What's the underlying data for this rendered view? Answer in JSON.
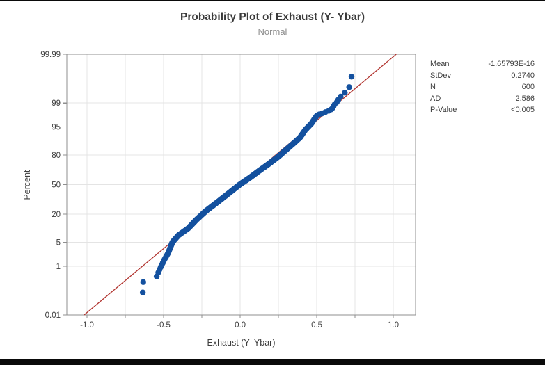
{
  "chart_data": {
    "type": "scatter",
    "subtype": "normal-probability-plot",
    "title": "Probability Plot of Exhaust (Y- Ybar)",
    "subtitle": "Normal",
    "xlabel": "Exhaust (Y- Ybar)",
    "ylabel": "Percent",
    "x_axis": {
      "lim": [
        -1.132,
        1.145
      ],
      "tick_values": [
        -1.0,
        -0.5,
        0.0,
        0.5,
        1.0
      ],
      "tick_labels": [
        "-1.0",
        "-0.5",
        "0.0",
        "0.5",
        "1.0"
      ],
      "minor_tick_values": [
        -1.0,
        -0.75,
        -0.5,
        -0.25,
        0.0,
        0.25,
        0.5,
        0.75,
        1.0
      ]
    },
    "y_axis": {
      "scale": "normal-probability-percent",
      "percent_lim": [
        0.01,
        99.99
      ],
      "tick_values": [
        99.99,
        99,
        95,
        80,
        50,
        20,
        5,
        1,
        0.01
      ],
      "tick_labels": [
        "99.99",
        "99",
        "95",
        "80",
        "50",
        "20",
        "5",
        "1",
        "0.01"
      ],
      "gridline_values": [
        99,
        95,
        80,
        50,
        20,
        5,
        1
      ]
    },
    "grid": true,
    "n_points": 600,
    "plotting_position": "(i-0.375)/(n+0.25)",
    "fit": {
      "mean": 0,
      "stdev": 0.274
    },
    "curve_anchors_z_x": [
      [
        -3.09,
        -0.636
      ],
      [
        -2.77,
        -0.633
      ],
      [
        -2.64,
        -0.547
      ],
      [
        -2.4,
        -0.524
      ],
      [
        -2.15,
        -0.496
      ],
      [
        -1.95,
        -0.47
      ],
      [
        -1.64,
        -0.442
      ],
      [
        -1.45,
        -0.404
      ],
      [
        -1.25,
        -0.34
      ],
      [
        -1.0,
        -0.285
      ],
      [
        -0.75,
        -0.223
      ],
      [
        -0.5,
        -0.148
      ],
      [
        -0.25,
        -0.075
      ],
      [
        0.0,
        -0.003
      ],
      [
        0.2,
        0.064
      ],
      [
        0.4,
        0.126
      ],
      [
        0.6,
        0.19
      ],
      [
        0.8,
        0.25
      ],
      [
        1.05,
        0.315
      ],
      [
        1.2,
        0.355
      ],
      [
        1.35,
        0.392
      ],
      [
        1.56,
        0.425
      ],
      [
        1.74,
        0.465
      ],
      [
        1.88,
        0.486
      ],
      [
        1.98,
        0.503
      ],
      [
        2.12,
        0.588
      ],
      [
        2.18,
        0.603
      ],
      [
        2.28,
        0.615
      ],
      [
        2.37,
        0.635
      ],
      [
        2.47,
        0.646
      ],
      [
        2.73,
        0.709
      ],
      [
        3.08,
        0.727
      ]
    ],
    "colors": {
      "point": "#14519f",
      "fit_line": "#b23530",
      "grid": "#e4e4e4",
      "frame": "#8f8f8f",
      "tick": "#8f8f8f",
      "text": "#3d3d3d",
      "subtitle": "#8d8d8d"
    },
    "legend_position": "right"
  },
  "stats": {
    "rows": [
      {
        "label": "Mean",
        "value": "-1.65793E-16"
      },
      {
        "label": "StDev",
        "value": "0.2740"
      },
      {
        "label": "N",
        "value": "600"
      },
      {
        "label": "AD",
        "value": "2.586"
      },
      {
        "label": "P-Value",
        "value": "<0.005"
      }
    ]
  }
}
